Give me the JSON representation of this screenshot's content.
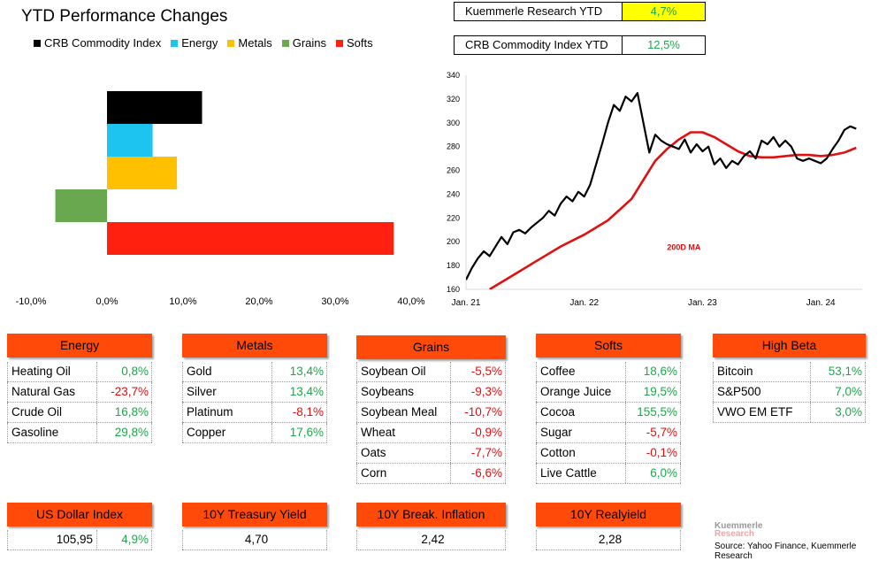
{
  "title": "YTD Performance Changes",
  "legend": [
    {
      "label": "CRB Commodity Index",
      "color": "#000000"
    },
    {
      "label": "Energy",
      "color": "#1ec4f0"
    },
    {
      "label": "Metals",
      "color": "#ffc000"
    },
    {
      "label": "Grains",
      "color": "#6aa84f"
    },
    {
      "label": "Softs",
      "color": "#ff2010"
    }
  ],
  "ytd_boxes": [
    {
      "label": "Kuemmerle Research YTD",
      "value": "4,7%",
      "highlight": "#ffff00"
    },
    {
      "label": "CRB Commodity Index YTD",
      "value": "12,5%",
      "highlight": "#ffffff"
    }
  ],
  "chart_data": [
    {
      "type": "bar",
      "orientation": "horizontal",
      "categories": [
        "CRB Commodity Index",
        "Energy",
        "Metals",
        "Grains",
        "Softs"
      ],
      "values": [
        12.5,
        6.0,
        9.2,
        -6.8,
        37.7
      ],
      "colors": [
        "#000000",
        "#1ec4f0",
        "#ffc000",
        "#6aa84f",
        "#ff2010"
      ],
      "xlim": [
        -10,
        40
      ],
      "xticks": [
        "-10,0%",
        "0,0%",
        "10,0%",
        "20,0%",
        "30,0%",
        "40,0%"
      ]
    },
    {
      "type": "line",
      "ylim": [
        160,
        340
      ],
      "yticks": [
        "160",
        "180",
        "200",
        "220",
        "240",
        "260",
        "280",
        "300",
        "320",
        "340"
      ],
      "xticks": [
        "Jan. 21",
        "Jan. 22",
        "Jan. 23",
        "Jan. 24"
      ],
      "annotation": "200D MA",
      "series": [
        {
          "color": "#000000",
          "x": [
            2021.0,
            2021.05,
            2021.1,
            2021.15,
            2021.2,
            2021.25,
            2021.3,
            2021.35,
            2021.4,
            2021.45,
            2021.5,
            2021.55,
            2021.6,
            2021.65,
            2021.7,
            2021.75,
            2021.8,
            2021.85,
            2021.9,
            2021.95,
            2022.0,
            2022.05,
            2022.1,
            2022.15,
            2022.2,
            2022.25,
            2022.3,
            2022.35,
            2022.4,
            2022.45,
            2022.5,
            2022.55,
            2022.6,
            2022.65,
            2022.7,
            2022.75,
            2022.8,
            2022.85,
            2022.9,
            2022.95,
            2023.0,
            2023.05,
            2023.1,
            2023.15,
            2023.2,
            2023.25,
            2023.3,
            2023.35,
            2023.4,
            2023.45,
            2023.5,
            2023.55,
            2023.6,
            2023.65,
            2023.7,
            2023.75,
            2023.8,
            2023.85,
            2023.9,
            2023.95,
            2024.0,
            2024.05,
            2024.1,
            2024.15,
            2024.2,
            2024.25,
            2024.3
          ],
          "y": [
            168,
            178,
            186,
            192,
            188,
            196,
            204,
            198,
            208,
            210,
            207,
            212,
            216,
            220,
            226,
            222,
            232,
            238,
            234,
            242,
            238,
            248,
            265,
            282,
            300,
            315,
            310,
            322,
            318,
            325,
            300,
            275,
            290,
            285,
            282,
            280,
            278,
            286,
            275,
            282,
            276,
            280,
            265,
            270,
            262,
            268,
            265,
            272,
            276,
            270,
            285,
            282,
            288,
            280,
            285,
            280,
            270,
            268,
            270,
            268,
            266,
            270,
            278,
            285,
            294,
            297,
            295
          ]
        },
        {
          "color": "#e01010",
          "x": [
            2021.2,
            2021.4,
            2021.6,
            2021.8,
            2022.0,
            2022.2,
            2022.4,
            2022.5,
            2022.6,
            2022.7,
            2022.8,
            2022.9,
            2023.0,
            2023.1,
            2023.2,
            2023.3,
            2023.4,
            2023.5,
            2023.6,
            2023.7,
            2023.8,
            2023.9,
            2024.0,
            2024.1,
            2024.2,
            2024.3
          ],
          "y": [
            160,
            172,
            184,
            196,
            206,
            218,
            236,
            252,
            268,
            278,
            286,
            292,
            292,
            288,
            282,
            276,
            272,
            271,
            271,
            272,
            273,
            273,
            272,
            273,
            275,
            279
          ]
        }
      ]
    }
  ],
  "tables": [
    {
      "header": "Energy",
      "rows": [
        {
          "name": "Heating Oil",
          "value": "0,8%",
          "sign": "pos"
        },
        {
          "name": "Natural Gas",
          "value": "-23,7%",
          "sign": "neg"
        },
        {
          "name": "Crude Oil",
          "value": "16,8%",
          "sign": "pos"
        },
        {
          "name": "Gasoline",
          "value": "29,8%",
          "sign": "pos"
        }
      ]
    },
    {
      "header": "Metals",
      "rows": [
        {
          "name": "Gold",
          "value": "13,4%",
          "sign": "pos"
        },
        {
          "name": "Silver",
          "value": "13,4%",
          "sign": "pos"
        },
        {
          "name": "Platinum",
          "value": "-8,1%",
          "sign": "neg"
        },
        {
          "name": "Copper",
          "value": "17,6%",
          "sign": "pos"
        }
      ]
    },
    {
      "header": "Grains",
      "rows": [
        {
          "name": "Soybean Oil",
          "value": "-5,5%",
          "sign": "neg"
        },
        {
          "name": "Soybeans",
          "value": "-9,3%",
          "sign": "neg"
        },
        {
          "name": "Soybean Meal",
          "value": "-10,7%",
          "sign": "neg"
        },
        {
          "name": "Wheat",
          "value": "-0,9%",
          "sign": "neg"
        },
        {
          "name": "Oats",
          "value": "-7,7%",
          "sign": "neg"
        },
        {
          "name": "Corn",
          "value": "-6,6%",
          "sign": "neg"
        }
      ]
    },
    {
      "header": "Softs",
      "rows": [
        {
          "name": "Coffee",
          "value": "18,6%",
          "sign": "pos"
        },
        {
          "name": "Orange Juice",
          "value": "19,5%",
          "sign": "pos"
        },
        {
          "name": "Cocoa",
          "value": "155,5%",
          "sign": "pos"
        },
        {
          "name": "Sugar",
          "value": "-5,7%",
          "sign": "neg"
        },
        {
          "name": "Cotton",
          "value": "-0,1%",
          "sign": "neg"
        },
        {
          "name": "Live Cattle",
          "value": "6,0%",
          "sign": "pos"
        }
      ]
    },
    {
      "header": "High Beta",
      "rows": [
        {
          "name": "Bitcoin",
          "value": "53,1%",
          "sign": "pos"
        },
        {
          "name": "S&P500",
          "value": "7,0%",
          "sign": "pos"
        },
        {
          "name": "VWO EM ETF",
          "value": "3,0%",
          "sign": "pos"
        }
      ]
    }
  ],
  "indicators": [
    {
      "header": "US Dollar Index",
      "value": "105,95",
      "change": "4,9%"
    },
    {
      "header": "10Y Treasury Yield",
      "value": "4,70"
    },
    {
      "header": "10Y Break. Inflation",
      "value": "2,42"
    },
    {
      "header": "10Y Realyield",
      "value": "2,28"
    }
  ],
  "logo": {
    "line1": "Kuemmerle",
    "line2": "Research"
  },
  "source": "Source: Yahoo Finance, Kuemmerle Research"
}
